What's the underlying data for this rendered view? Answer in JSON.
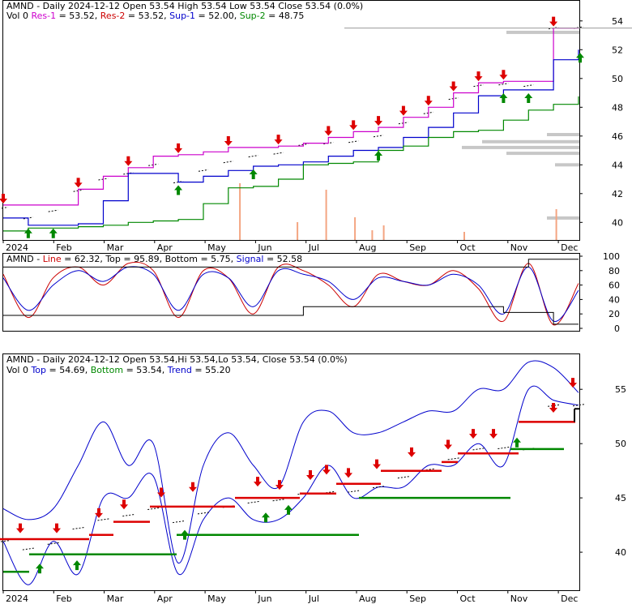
{
  "ticker": "AMND",
  "colors": {
    "res1": "#cc00cc",
    "res2": "#cc0000",
    "sup1": "#0000cc",
    "sup2": "#008800",
    "line": "#cc0000",
    "top": "#000000",
    "bottom": "#000000",
    "signal": "#0000cc",
    "band": "#0000cc",
    "step_red": "#dd0000",
    "step_green": "#008800",
    "arrow_down": "#dd0000",
    "arrow_up": "#008800",
    "volume": "#f4a582",
    "profile": "#999999"
  },
  "panel1": {
    "title_ticker": "AMND",
    "title_rest": " - Daily 2024-12-12 Open 53.54  High 53.54  Low 53.54  Close 53.54 (0.0%)",
    "vol": "Vol 0",
    "res1_label": "Res-1",
    "res1_value": " = 53.52, ",
    "res2_label": "Res-2",
    "res2_value": " = 53.52, ",
    "sup1_label": "Sup-1",
    "sup1_value": " = 52.00, ",
    "sup2_label": "Sup-2",
    "sup2_value": " = 48.75",
    "y_ticks": [
      "54",
      "52",
      "50",
      "48",
      "46",
      "44",
      "42",
      "40"
    ],
    "x_ticks": [
      "2024",
      "Feb",
      "Mar",
      "Apr",
      "May",
      "Jun",
      "Jul",
      "Aug",
      "Sep",
      "Oct",
      "Nov",
      "Dec"
    ]
  },
  "panel2": {
    "ticker": "AMND",
    "line_label": "Line",
    "line_value": " = 62.32, ",
    "top_label": "Top",
    "top_value": " = 95.89, ",
    "bottom_label": "Bottom",
    "bottom_value": " = 5.75, ",
    "signal_label": "Signal",
    "signal_value": " = 52.58",
    "y_ticks": [
      "100",
      "80",
      "60",
      "40",
      "20",
      "0"
    ]
  },
  "panel3": {
    "title": "AMND - Daily 2024-12-12 Open 53.54,Hi 53.54,Lo 53.54, Close 53.54 (0.0%)",
    "vol": "Vol 0",
    "top_label": "Top",
    "top_value": " = 54.69, ",
    "bottom_label": "Bottom",
    "bottom_value": " = 53.54, ",
    "trend_label": "Trend",
    "trend_value": " = 55.20",
    "y_ticks": [
      "55",
      "50",
      "45",
      "40"
    ],
    "x_ticks": [
      "2024",
      "Feb",
      "Mar",
      "Apr",
      "May",
      "Jun",
      "Jul",
      "Aug",
      "Sep",
      "Oct",
      "Nov",
      "Dec"
    ]
  },
  "chart_data": [
    {
      "type": "line",
      "title": "AMND - Daily 2024-12-12 Open 53.54 High 53.54 Low 53.54 Close 53.54 (0.0%)",
      "x": [
        "2024-01",
        "2024-01m",
        "2024-02",
        "2024-02m",
        "2024-03",
        "2024-03m",
        "2024-04",
        "2024-04m",
        "2024-05",
        "2024-05m",
        "2024-06",
        "2024-06m",
        "2024-07",
        "2024-07m",
        "2024-08",
        "2024-08m",
        "2024-09",
        "2024-09m",
        "2024-10",
        "2024-10m",
        "2024-11",
        "2024-11m",
        "2024-12",
        "2024-12m"
      ],
      "ylim": [
        39,
        55
      ],
      "series": [
        {
          "name": "Price",
          "values": [
            41.0,
            40.3,
            40.8,
            42.2,
            43.0,
            43.4,
            44.0,
            42.8,
            43.6,
            44.2,
            44.6,
            44.8,
            45.4,
            45.5,
            45.6,
            46.0,
            46.9,
            47.6,
            48.6,
            49.5,
            49.6,
            49.5,
            53.5,
            53.54
          ]
        },
        {
          "name": "Res-1",
          "values": [
            41.2,
            41.2,
            41.2,
            42.3,
            43.2,
            43.8,
            44.6,
            44.7,
            44.9,
            45.2,
            45.2,
            45.3,
            45.5,
            45.9,
            46.3,
            46.6,
            47.3,
            48.0,
            49.0,
            49.7,
            49.8,
            49.8,
            53.5,
            53.52
          ]
        },
        {
          "name": "Sup-1",
          "values": [
            40.3,
            39.8,
            39.8,
            39.9,
            41.5,
            43.4,
            43.4,
            42.8,
            43.2,
            43.6,
            43.9,
            44.0,
            44.2,
            44.6,
            45.0,
            45.2,
            45.9,
            46.6,
            47.6,
            48.8,
            49.2,
            49.2,
            51.3,
            52.0
          ]
        },
        {
          "name": "Sup-2",
          "values": [
            39.4,
            39.6,
            39.6,
            39.7,
            39.8,
            40.0,
            40.1,
            40.2,
            41.3,
            42.4,
            42.5,
            43.0,
            44.0,
            44.1,
            44.2,
            45.0,
            45.3,
            45.9,
            46.3,
            46.4,
            47.1,
            47.8,
            48.2,
            48.75
          ]
        }
      ]
    },
    {
      "type": "line",
      "title": "AMND - Line = 62.32, Top = 95.89, Bottom = 5.75, Signal = 52.58",
      "ylim": [
        0,
        100
      ],
      "series": [
        {
          "name": "Line",
          "values": [
            75,
            15,
            70,
            85,
            60,
            90,
            80,
            15,
            80,
            70,
            20,
            85,
            80,
            60,
            30,
            75,
            65,
            60,
            80,
            55,
            10,
            90,
            5,
            62.32
          ]
        },
        {
          "name": "Signal",
          "values": [
            70,
            25,
            60,
            80,
            65,
            85,
            75,
            25,
            75,
            70,
            30,
            80,
            75,
            65,
            40,
            70,
            65,
            60,
            75,
            60,
            20,
            85,
            10,
            52.58
          ]
        },
        {
          "name": "Top",
          "values": [
            85,
            85,
            85,
            85,
            85,
            85,
            85,
            85,
            85,
            85,
            85,
            85,
            85,
            85,
            85,
            85,
            85,
            85,
            85,
            85,
            85,
            95.89,
            95.89,
            95.89
          ]
        },
        {
          "name": "Bottom",
          "values": [
            18,
            18,
            18,
            18,
            18,
            18,
            18,
            18,
            18,
            18,
            18,
            18,
            30,
            30,
            30,
            30,
            30,
            30,
            30,
            30,
            22,
            22,
            5.75,
            5.75
          ]
        }
      ]
    },
    {
      "type": "line",
      "title": "AMND - Daily 2024-12-12 Open 53.54,Hi 53.54,Lo 53.54, Close 53.54 (0.0%)",
      "ylim": [
        36.5,
        58
      ],
      "series": [
        {
          "name": "Price",
          "values": [
            41.0,
            40.3,
            40.8,
            42.2,
            43.0,
            43.4,
            44.0,
            42.8,
            43.6,
            44.2,
            44.6,
            44.8,
            45.4,
            45.5,
            45.6,
            46.0,
            46.9,
            47.6,
            48.6,
            49.5,
            49.6,
            49.5,
            53.5,
            53.54
          ]
        },
        {
          "name": "Top",
          "values": [
            44,
            43,
            44,
            48,
            52,
            48,
            50,
            39,
            48,
            51,
            48,
            46,
            52,
            53,
            51,
            51,
            52,
            53,
            53,
            55,
            55,
            57.5,
            57.0,
            54.69
          ]
        },
        {
          "name": "Bottom",
          "values": [
            41,
            37,
            41,
            38,
            45,
            45,
            47,
            38,
            43,
            45,
            43,
            43,
            45,
            48,
            45,
            46,
            46,
            48,
            48,
            50,
            48,
            55,
            54,
            53.54
          ]
        },
        {
          "name": "Trend",
          "values": [
            41.0,
            41.0,
            41.0,
            41.0,
            42.5,
            43.5,
            44.0,
            44.0,
            44.2,
            45.0,
            45.0,
            45.0,
            45.5,
            45.5,
            46.5,
            46.5,
            47.5,
            47.5,
            49.0,
            49.0,
            49.0,
            52.0,
            52.0,
            55.2
          ]
        }
      ]
    }
  ]
}
